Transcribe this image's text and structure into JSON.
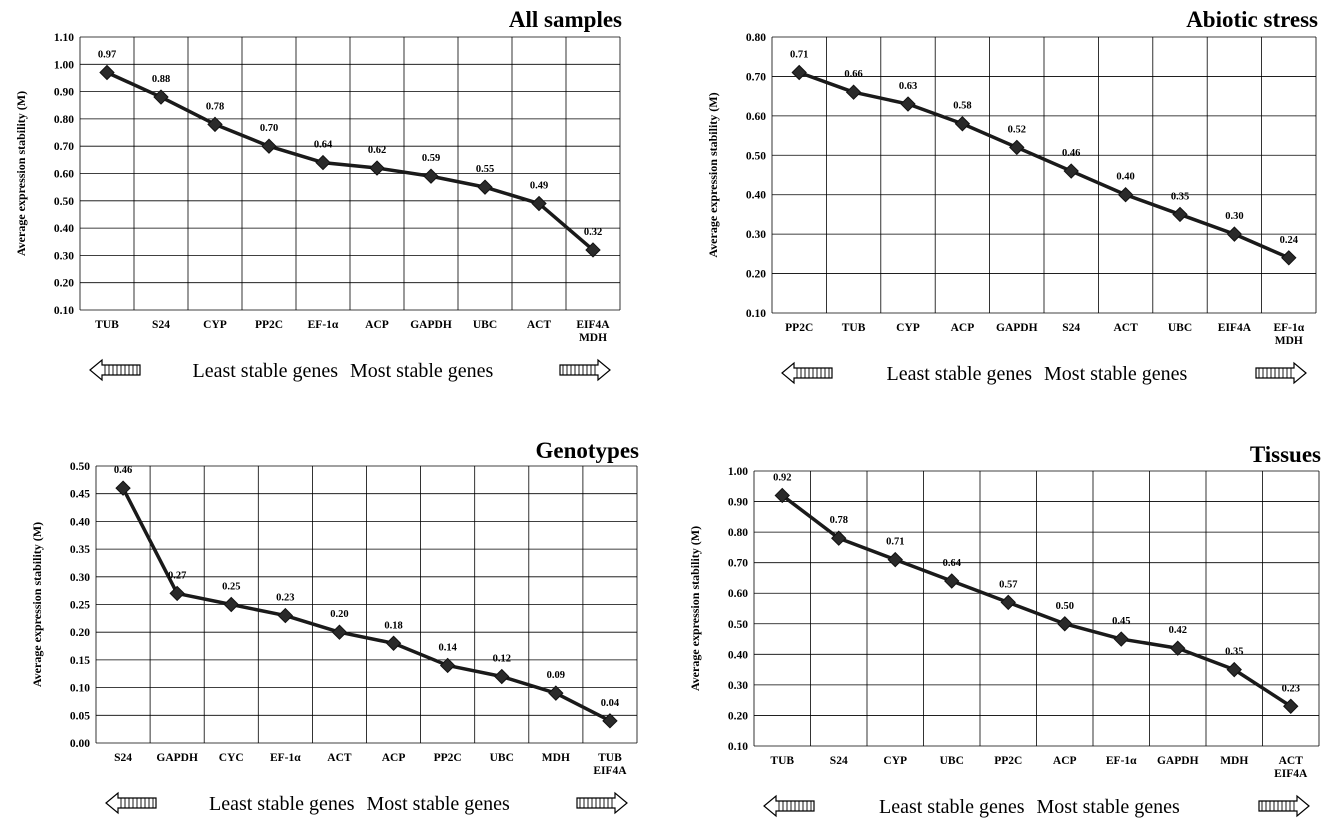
{
  "footer": {
    "least": "Least stable genes",
    "most": "Most stable genes"
  },
  "chart_data": [
    {
      "type": "line",
      "title": "All samples",
      "ylabel": "Average expression stability (M)",
      "xlabel": "",
      "ylim": [
        0.1,
        1.1
      ],
      "yticks": [
        "0.10",
        "0.20",
        "0.30",
        "0.40",
        "0.50",
        "0.60",
        "0.70",
        "0.80",
        "0.90",
        "1.00",
        "1.10"
      ],
      "categories": [
        [
          "TUB"
        ],
        [
          "S24"
        ],
        [
          "CYP"
        ],
        [
          "PP2C"
        ],
        [
          "EF-1α"
        ],
        [
          "ACP"
        ],
        [
          "GAPDH"
        ],
        [
          "UBC"
        ],
        [
          "ACT"
        ],
        [
          "EIF4A",
          "MDH"
        ]
      ],
      "values": [
        0.97,
        0.88,
        0.78,
        0.7,
        0.64,
        0.62,
        0.59,
        0.55,
        0.49,
        0.32
      ],
      "labels": [
        "0.97",
        "0.88",
        "0.78",
        "0.70",
        "0.64",
        "0.62",
        "0.59",
        "0.55",
        "0.49",
        "0.32"
      ],
      "grid": true
    },
    {
      "type": "line",
      "title": "Abiotic stress",
      "ylabel": "Average expression stability (M)",
      "xlabel": "",
      "ylim": [
        0.1,
        0.8
      ],
      "yticks": [
        "0.10",
        "0.20",
        "0.30",
        "0.40",
        "0.50",
        "0.60",
        "0.70",
        "0.80"
      ],
      "categories": [
        [
          "PP2C"
        ],
        [
          "TUB"
        ],
        [
          "CYP"
        ],
        [
          "ACP"
        ],
        [
          "GAPDH"
        ],
        [
          "S24"
        ],
        [
          "ACT"
        ],
        [
          "UBC"
        ],
        [
          "EIF4A"
        ],
        [
          "EF-1α",
          "MDH"
        ]
      ],
      "values": [
        0.71,
        0.66,
        0.63,
        0.58,
        0.52,
        0.46,
        0.4,
        0.35,
        0.3,
        0.24
      ],
      "labels": [
        "0.71",
        "0.66",
        "0.63",
        "0.58",
        "0.52",
        "0.46",
        "0.40",
        "0.35",
        "0.30",
        "0.24"
      ],
      "grid": true
    },
    {
      "type": "line",
      "title": "Genotypes",
      "ylabel": "Average expression stability (M)",
      "xlabel": "",
      "ylim": [
        0.0,
        0.5
      ],
      "yticks": [
        "0.00",
        "0.05",
        "0.10",
        "0.15",
        "0.20",
        "0.25",
        "0.30",
        "0.35",
        "0.40",
        "0.45",
        "0.50"
      ],
      "categories": [
        [
          "S24"
        ],
        [
          "GAPDH"
        ],
        [
          "CYC"
        ],
        [
          "EF-1α"
        ],
        [
          "ACT"
        ],
        [
          "ACP"
        ],
        [
          "PP2C"
        ],
        [
          "UBC"
        ],
        [
          "MDH"
        ],
        [
          "TUB",
          "EIF4A"
        ]
      ],
      "values": [
        0.46,
        0.27,
        0.25,
        0.23,
        0.2,
        0.18,
        0.14,
        0.12,
        0.09,
        0.04
      ],
      "labels": [
        "0.46",
        "0.27",
        "0.25",
        "0.23",
        "0.20",
        "0.18",
        "0.14",
        "0.12",
        "0.09",
        "0.04"
      ],
      "grid": true
    },
    {
      "type": "line",
      "title": "Tissues",
      "ylabel": "Average expression stability (M)",
      "xlabel": "",
      "ylim": [
        0.1,
        1.0
      ],
      "yticks": [
        "0.10",
        "0.20",
        "0.30",
        "0.40",
        "0.50",
        "0.60",
        "0.70",
        "0.80",
        "0.90",
        "1.00"
      ],
      "categories": [
        [
          "TUB"
        ],
        [
          "S24"
        ],
        [
          "CYP"
        ],
        [
          "UBC"
        ],
        [
          "PP2C"
        ],
        [
          "ACP"
        ],
        [
          "EF-1α"
        ],
        [
          "GAPDH"
        ],
        [
          "MDH"
        ],
        [
          "ACT",
          "EIF4A"
        ]
      ],
      "values": [
        0.92,
        0.78,
        0.71,
        0.64,
        0.57,
        0.5,
        0.45,
        0.42,
        0.35,
        0.23
      ],
      "labels": [
        "0.92",
        "0.78",
        "0.71",
        "0.64",
        "0.57",
        "0.50",
        "0.45",
        "0.42",
        "0.35",
        "0.23"
      ],
      "grid": true
    }
  ]
}
